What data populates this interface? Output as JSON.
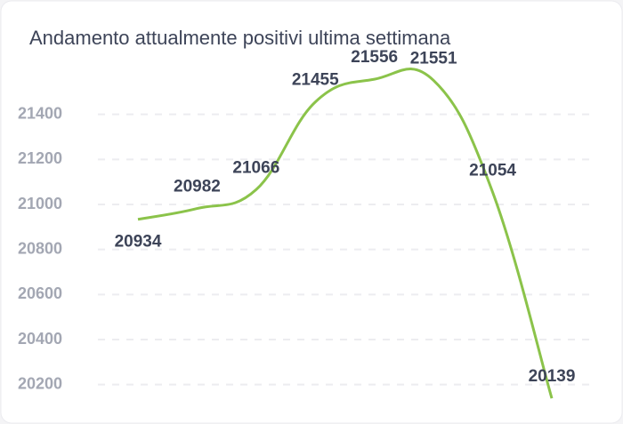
{
  "chart_data": {
    "type": "line",
    "title": "Andamento attualmente positivi ultima settimana",
    "categories": [
      null,
      null,
      null,
      null,
      null,
      null,
      null,
      null
    ],
    "series": [
      {
        "name": null,
        "color": "#8bc34a",
        "values": [
          20934,
          20982,
          21066,
          21455,
          21556,
          21551,
          21054,
          20139
        ]
      }
    ],
    "ylim": [
      20100,
      21600
    ],
    "yticks": [
      20200,
      20400,
      20600,
      20800,
      21000,
      21200,
      21400
    ],
    "grid": true
  }
}
